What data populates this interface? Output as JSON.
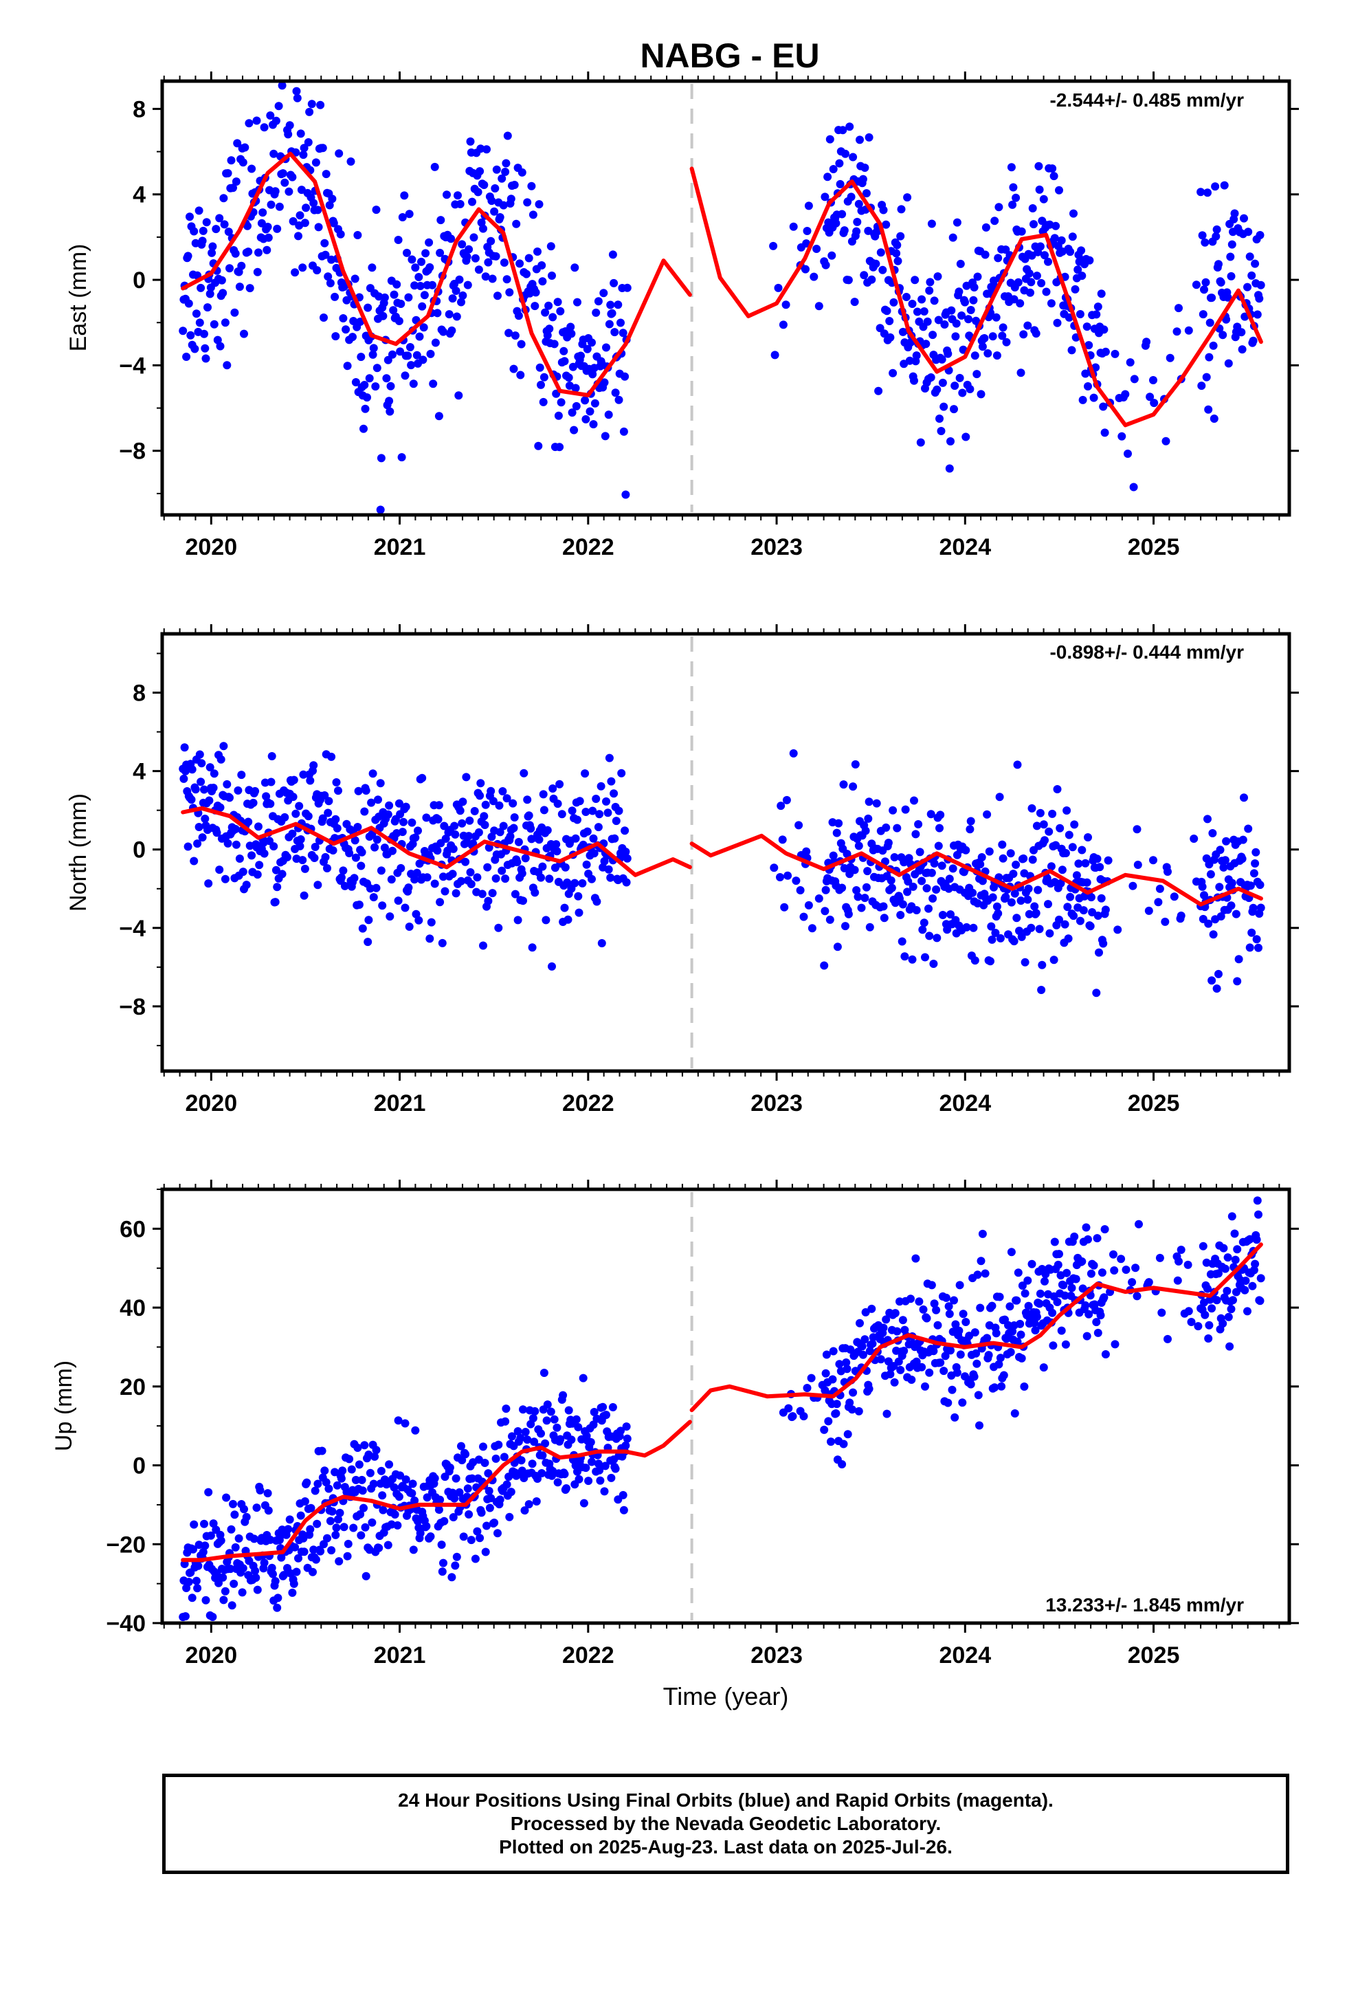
{
  "figure": {
    "title": "NABG - EU",
    "xlabel": "Time (year)"
  },
  "chart_data": [
    {
      "type": "scatter",
      "ylabel": "East (mm)",
      "rate_label": "-2.544+/- 0.485 mm/yr",
      "xlim": [
        2019.74,
        2025.72
      ],
      "ylim": [
        -11.0,
        9.3
      ],
      "yticks": [
        8,
        4,
        0,
        -4,
        -8
      ],
      "xticks": [
        2020,
        2021,
        2022,
        2023,
        2024,
        2025
      ],
      "break_year": 2022.55,
      "data_gap": [
        2022.21,
        2022.98
      ],
      "data_end": 2025.57,
      "series": [
        {
          "color": "#0000ff",
          "sampled_points": {
            "x": [
              2019.85,
              2020.0,
              2020.2,
              2020.4,
              2020.6,
              2020.8,
              2021.0,
              2021.2,
              2021.4,
              2021.6,
              2021.8,
              2022.0,
              2022.2,
              2023.0,
              2023.2,
              2023.4,
              2023.6,
              2023.8,
              2024.0,
              2024.2,
              2024.4,
              2024.6,
              2024.8,
              2025.0,
              2025.2,
              2025.4,
              2025.57
            ],
            "y": [
              0.0,
              0.5,
              3.0,
              6.0,
              3.5,
              -3.0,
              -2.5,
              -1.0,
              3.0,
              1.5,
              -3.5,
              -4.0,
              -3.5,
              -2.0,
              2.0,
              4.5,
              0.0,
              -3.5,
              -3.5,
              -1.0,
              2.0,
              0.0,
              -6.0,
              -6.0,
              -2.0,
              0.5,
              -1.0
            ]
          }
        },
        {
          "color": "#ff0000",
          "model_curve": {
            "x": [
              2019.85,
              2020.0,
              2020.15,
              2020.3,
              2020.42,
              2020.55,
              2020.7,
              2020.85,
              2020.98,
              2021.15,
              2021.3,
              2021.42,
              2021.55,
              2021.7,
              2021.85,
              2022.0,
              2022.2,
              2022.4,
              2022.54,
              2022.55,
              2022.7,
              2022.85,
              2023.0,
              2023.15,
              2023.28,
              2023.4,
              2023.55,
              2023.7,
              2023.85,
              2024.0,
              2024.15,
              2024.3,
              2024.43,
              2024.55,
              2024.7,
              2024.85,
              2025.0,
              2025.15,
              2025.3,
              2025.45,
              2025.57
            ],
            "y": [
              -0.4,
              0.3,
              2.3,
              5.0,
              5.9,
              4.6,
              0.4,
              -2.6,
              -3.0,
              -1.7,
              1.8,
              3.3,
              2.2,
              -2.5,
              -5.2,
              -5.4,
              -3.0,
              0.9,
              -0.7,
              5.2,
              0.1,
              -1.7,
              -1.1,
              1.0,
              3.6,
              4.6,
              2.6,
              -2.4,
              -4.3,
              -3.6,
              -0.8,
              1.9,
              2.1,
              -1.0,
              -5.0,
              -6.8,
              -6.3,
              -4.6,
              -2.6,
              -0.5,
              -2.9
            ]
          }
        }
      ]
    },
    {
      "type": "scatter",
      "ylabel": "North (mm)",
      "rate_label": "-0.898+/- 0.444 mm/yr",
      "xlim": [
        2019.74,
        2025.72
      ],
      "ylim": [
        -11.3,
        11.0
      ],
      "yticks": [
        8,
        4,
        0,
        -4,
        -8
      ],
      "xticks": [
        2020,
        2021,
        2022,
        2023,
        2024,
        2025
      ],
      "break_year": 2022.55,
      "data_gap": [
        2022.21,
        2022.98
      ],
      "data_end": 2025.57,
      "series": [
        {
          "color": "#0000ff",
          "sampled_points": {
            "x": [
              2019.85,
              2020.0,
              2020.2,
              2020.4,
              2020.6,
              2020.8,
              2021.0,
              2021.2,
              2021.4,
              2021.6,
              2021.8,
              2022.0,
              2022.2,
              2023.0,
              2023.2,
              2023.4,
              2023.6,
              2023.8,
              2024.0,
              2024.2,
              2024.4,
              2024.6,
              2024.8,
              2025.0,
              2025.2,
              2025.4,
              2025.57
            ],
            "y": [
              2.0,
              1.5,
              0.8,
              1.0,
              0.8,
              0.0,
              0.0,
              -0.5,
              -0.3,
              0.2,
              0.0,
              0.5,
              0.5,
              -0.5,
              -1.5,
              -0.5,
              -1.0,
              -1.0,
              -1.5,
              -2.0,
              -1.5,
              -1.8,
              -2.0,
              -2.5,
              -2.5,
              -2.5,
              -2.5
            ]
          }
        },
        {
          "color": "#ff0000",
          "model_curve": {
            "x": [
              2019.85,
              2019.95,
              2020.1,
              2020.25,
              2020.45,
              2020.65,
              2020.85,
              2021.05,
              2021.25,
              2021.45,
              2021.65,
              2021.85,
              2022.05,
              2022.25,
              2022.45,
              2022.54,
              2022.55,
              2022.65,
              2022.92,
              2023.05,
              2023.25,
              2023.45,
              2023.65,
              2023.85,
              2024.05,
              2024.25,
              2024.45,
              2024.65,
              2024.85,
              2025.05,
              2025.25,
              2025.45,
              2025.57
            ],
            "y": [
              1.9,
              2.1,
              1.7,
              0.6,
              1.3,
              0.3,
              1.1,
              -0.2,
              -0.9,
              0.4,
              -0.1,
              -0.6,
              0.3,
              -1.3,
              -0.5,
              -0.9,
              0.3,
              -0.3,
              0.7,
              -0.2,
              -1.0,
              -0.2,
              -1.3,
              -0.2,
              -1.1,
              -2.0,
              -1.1,
              -2.2,
              -1.3,
              -1.6,
              -2.8,
              -2.0,
              -2.5
            ]
          }
        }
      ]
    },
    {
      "type": "scatter",
      "ylabel": "Up (mm)",
      "rate_label": "13.233+/- 1.845 mm/yr",
      "xlim": [
        2019.74,
        2025.72
      ],
      "ylim": [
        -40.0,
        70.0
      ],
      "yticks": [
        60,
        40,
        20,
        0,
        -20,
        -40
      ],
      "xticks": [
        2020,
        2021,
        2022,
        2023,
        2024,
        2025
      ],
      "break_year": 2022.55,
      "data_gap": [
        2022.21,
        2022.98
      ],
      "data_end": 2025.57,
      "series": [
        {
          "color": "#0000ff",
          "sampled_points": {
            "x": [
              2019.85,
              2020.0,
              2020.2,
              2020.4,
              2020.6,
              2020.8,
              2021.0,
              2021.2,
              2021.4,
              2021.6,
              2021.8,
              2022.0,
              2022.2,
              2023.0,
              2023.2,
              2023.4,
              2023.6,
              2023.8,
              2024.0,
              2024.2,
              2024.4,
              2024.6,
              2024.8,
              2025.0,
              2025.2,
              2025.4,
              2025.57
            ],
            "y": [
              -25.0,
              -24.0,
              -22.0,
              -22.0,
              -10.0,
              -8.0,
              -10.0,
              -10.0,
              -8.0,
              0.0,
              5.0,
              3.0,
              3.0,
              18.0,
              15.0,
              22.0,
              32.0,
              32.0,
              30.0,
              30.0,
              40.0,
              48.0,
              47.0,
              45.0,
              45.0,
              47.0,
              55.0
            ]
          }
        },
        {
          "color": "#ff0000",
          "model_curve": {
            "x": [
              2019.85,
              2019.95,
              2020.1,
              2020.25,
              2020.38,
              2020.5,
              2020.6,
              2020.7,
              2020.85,
              2021.0,
              2021.1,
              2021.2,
              2021.35,
              2021.45,
              2021.55,
              2021.65,
              2021.75,
              2021.85,
              2021.95,
              2022.05,
              2022.2,
              2022.3,
              2022.4,
              2022.54,
              2022.55,
              2022.65,
              2022.75,
              2022.95,
              2023.15,
              2023.3,
              2023.42,
              2023.55,
              2023.7,
              2023.85,
              2024.0,
              2024.15,
              2024.3,
              2024.4,
              2024.5,
              2024.6,
              2024.7,
              2024.85,
              2025.0,
              2025.15,
              2025.3,
              2025.45,
              2025.57
            ],
            "y": [
              -24.0,
              -24.0,
              -23.0,
              -22.5,
              -22.0,
              -14.0,
              -10.0,
              -8.0,
              -9.0,
              -11.0,
              -10.0,
              -10.0,
              -10.0,
              -5.0,
              0.0,
              3.5,
              4.5,
              2.0,
              2.5,
              3.5,
              3.5,
              2.5,
              5.0,
              11.0,
              14.0,
              19.0,
              20.0,
              17.5,
              18.0,
              17.5,
              22.0,
              30.0,
              33.0,
              31.0,
              30.0,
              31.0,
              30.0,
              33.0,
              38.0,
              42.0,
              46.0,
              44.0,
              45.0,
              44.0,
              43.0,
              50.0,
              56.0
            ]
          }
        }
      ]
    }
  ],
  "footer": {
    "line1": "24 Hour Positions Using Final Orbits (blue) and Rapid Orbits (magenta).",
    "line2": "Processed by the Nevada Geodetic Laboratory.",
    "line3": "Plotted on 2025-Aug-23. Last data on 2025-Jul-26."
  }
}
